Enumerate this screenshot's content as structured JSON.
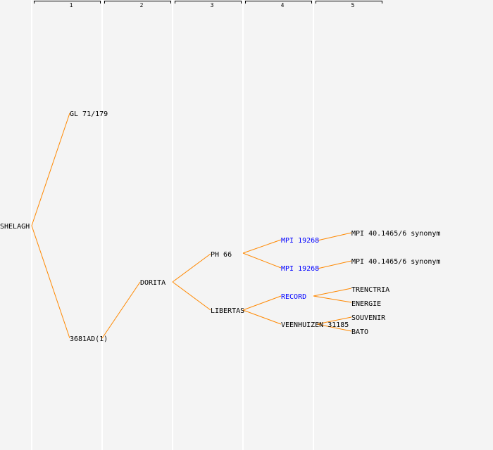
{
  "generations": [
    "1",
    "2",
    "3",
    "4",
    "5"
  ],
  "nodes": {
    "root": "SHELAGH",
    "g1a": "GL 71/179",
    "g1b": "3681AD(1)",
    "g2b": "DORITA",
    "g3a": "PH 66",
    "g3b": "LIBERTAS",
    "g4a": "MPI 19268",
    "g4b": "MPI 19268",
    "g4c": "RECORD",
    "g4d": "VEENHUIZEN 31185",
    "g5a": "MPI 40.1465/6 synonym",
    "g5b": "MPI 40.1465/6 synonym",
    "g5c": "TRENCTRIA",
    "g5d": "ENERGIE",
    "g5e": "SOUVENIR",
    "g5f": "BATO"
  },
  "colors": {
    "edge": "#ff8800",
    "link": "#0000ff"
  }
}
